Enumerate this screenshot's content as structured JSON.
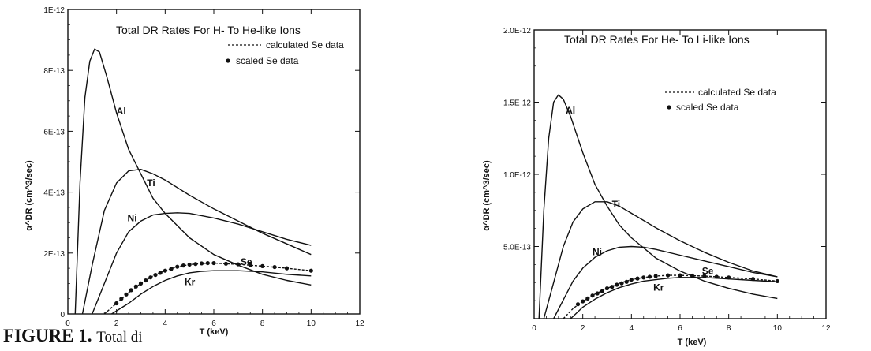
{
  "caption": {
    "label": "FIGURE 1.",
    "text": "Total di"
  },
  "chart_data": [
    {
      "type": "line",
      "title": "Total DR Rates For H- To He-like Ions",
      "xlabel": "T (keV)",
      "ylabel": "α^DR (cm^3/sec)",
      "xlim": [
        0,
        12
      ],
      "ylim": [
        0,
        1e-12
      ],
      "x_ticks": [
        0,
        2,
        4,
        6,
        8,
        10,
        12
      ],
      "x_tick_labels": [
        "0",
        "2",
        "4",
        "6",
        "8",
        "10",
        "12"
      ],
      "y_ticks": [
        0,
        2e-13,
        4e-13,
        6e-13,
        8e-13,
        1e-12
      ],
      "y_tick_labels": [
        "0",
        "2E-13",
        "4E-13",
        "6E-13",
        "8E-13",
        "1E-12"
      ],
      "legend": [
        {
          "label": "calculated Se data",
          "marker": "dashed-line"
        },
        {
          "label": "scaled Se data",
          "marker": "dot"
        }
      ],
      "series": [
        {
          "name": "Al",
          "x": [
            0.3,
            0.5,
            0.7,
            0.9,
            1.1,
            1.3,
            1.6,
            2.0,
            2.5,
            3.0,
            3.5,
            4.0,
            5.0,
            6.0,
            7.0,
            8.0,
            9.0,
            10.0
          ],
          "y": [
            0,
            4.3e-13,
            7.1e-13,
            8.3e-13,
            8.7e-13,
            8.6e-13,
            7.8e-13,
            6.6e-13,
            5.4e-13,
            4.6e-13,
            3.8e-13,
            3.3e-13,
            2.5e-13,
            1.95e-13,
            1.6e-13,
            1.3e-13,
            1.1e-13,
            9.5e-14
          ]
        },
        {
          "name": "Ti",
          "x": [
            0.6,
            1.0,
            1.5,
            2.0,
            2.5,
            3.0,
            3.5,
            4.0,
            5.0,
            6.0,
            7.0,
            8.0,
            9.0,
            10.0
          ],
          "y": [
            0,
            1.6e-13,
            3.4e-13,
            4.3e-13,
            4.7e-13,
            4.75e-13,
            4.6e-13,
            4.4e-13,
            3.9e-13,
            3.45e-13,
            3.05e-13,
            2.65e-13,
            2.3e-13,
            1.95e-13
          ]
        },
        {
          "name": "Ni",
          "x": [
            1.0,
            1.5,
            2.0,
            2.5,
            3.0,
            3.5,
            4.0,
            4.5,
            5.0,
            6.0,
            7.0,
            8.0,
            9.0,
            10.0
          ],
          "y": [
            0,
            1e-13,
            2e-13,
            2.7e-13,
            3.05e-13,
            3.25e-13,
            3.3e-13,
            3.32e-13,
            3.3e-13,
            3.15e-13,
            2.95e-13,
            2.7e-13,
            2.45e-13,
            2.25e-13
          ]
        },
        {
          "name": "Se",
          "x": [
            1.5,
            2.0,
            2.5,
            3.0,
            3.5,
            4.0,
            4.5,
            5.0,
            5.5,
            6.0,
            7.0,
            8.0,
            9.0,
            10.0
          ],
          "y": [
            0,
            3.5e-14,
            7e-14,
            1e-13,
            1.25e-13,
            1.42e-13,
            1.55e-13,
            1.62e-13,
            1.66e-13,
            1.67e-13,
            1.63e-13,
            1.57e-13,
            1.5e-13,
            1.42e-13
          ]
        },
        {
          "name": "Kr",
          "x": [
            1.8,
            2.5,
            3.0,
            3.5,
            4.0,
            4.5,
            5.0,
            5.5,
            6.0,
            7.0,
            8.0,
            9.0,
            10.0
          ],
          "y": [
            0,
            3.5e-14,
            6.5e-14,
            9e-14,
            1.1e-13,
            1.25e-13,
            1.35e-13,
            1.4e-13,
            1.42e-13,
            1.42e-13,
            1.38e-13,
            1.3e-13,
            1.25e-13
          ]
        },
        {
          "name": "scaled Se data",
          "style": "dots",
          "x": [
            2.0,
            2.2,
            2.4,
            2.6,
            2.8,
            3.0,
            3.2,
            3.4,
            3.6,
            3.8,
            4.0,
            4.25,
            4.5,
            4.75,
            5.0,
            5.25,
            5.5,
            5.75,
            6.0,
            6.5,
            7.0,
            7.5,
            8.0,
            8.5,
            9.0,
            10.0
          ],
          "y": [
            3.5e-14,
            5e-14,
            6.4e-14,
            7.8e-14,
            9e-14,
            1e-13,
            1.1e-13,
            1.2e-13,
            1.28e-13,
            1.35e-13,
            1.42e-13,
            1.48e-13,
            1.55e-13,
            1.59e-13,
            1.62e-13,
            1.64e-13,
            1.66e-13,
            1.67e-13,
            1.67e-13,
            1.65e-13,
            1.63e-13,
            1.6e-13,
            1.57e-13,
            1.54e-13,
            1.5e-13,
            1.42e-13
          ]
        }
      ]
    },
    {
      "type": "line",
      "title": "Total DR Rates For He- To Li-like Ions",
      "xlabel": "T (keV)",
      "ylabel": "α^DR (cm^3/sec)",
      "xlim": [
        0,
        12
      ],
      "ylim": [
        0,
        2e-12
      ],
      "x_ticks": [
        0,
        2,
        4,
        6,
        8,
        10,
        12
      ],
      "x_tick_labels": [
        "0",
        "2",
        "4",
        "6",
        "8",
        "10",
        "12"
      ],
      "y_ticks": [
        0,
        5e-13,
        1e-12,
        1.5e-12,
        2e-12
      ],
      "y_tick_labels": [
        "",
        "5.0E-13",
        "1.0E-12",
        "1.5E-12",
        "2.0E-12"
      ],
      "legend": [
        {
          "label": "calculated Se data",
          "marker": "dashed-line"
        },
        {
          "label": "scaled Se data",
          "marker": "dot"
        }
      ],
      "series": [
        {
          "name": "Al",
          "x": [
            0.2,
            0.4,
            0.6,
            0.8,
            1.0,
            1.2,
            1.5,
            2.0,
            2.5,
            3.0,
            3.5,
            4.0,
            5.0,
            6.0,
            7.0,
            8.0,
            9.0,
            10.0
          ],
          "y": [
            0,
            7.5e-13,
            1.25e-12,
            1.5e-12,
            1.55e-12,
            1.52e-12,
            1.4e-12,
            1.15e-12,
            9.3e-13,
            7.8e-13,
            6.5e-13,
            5.6e-13,
            4.2e-13,
            3.3e-13,
            2.6e-13,
            2.1e-13,
            1.7e-13,
            1.4e-13
          ]
        },
        {
          "name": "Ti",
          "x": [
            0.4,
            0.8,
            1.2,
            1.6,
            2.0,
            2.5,
            3.0,
            3.5,
            4.0,
            5.0,
            6.0,
            7.0,
            8.0,
            9.0,
            10.0
          ],
          "y": [
            0,
            2.5e-13,
            5e-13,
            6.7e-13,
            7.6e-13,
            8.1e-13,
            8.1e-13,
            7.8e-13,
            7.3e-13,
            6.3e-13,
            5.4e-13,
            4.6e-13,
            3.9e-13,
            3.3e-13,
            2.9e-13
          ]
        },
        {
          "name": "Ni",
          "x": [
            0.8,
            1.2,
            1.6,
            2.0,
            2.5,
            3.0,
            3.5,
            4.0,
            4.5,
            5.0,
            6.0,
            7.0,
            8.0,
            9.0,
            10.0
          ],
          "y": [
            0,
            1.3e-13,
            2.6e-13,
            3.5e-13,
            4.25e-13,
            4.7e-13,
            4.95e-13,
            5e-13,
            4.95e-13,
            4.8e-13,
            4.4e-13,
            4e-13,
            3.6e-13,
            3.2e-13,
            2.9e-13
          ]
        },
        {
          "name": "Se",
          "x": [
            1.2,
            1.6,
            2.0,
            2.5,
            3.0,
            3.5,
            4.0,
            4.5,
            5.0,
            5.5,
            6.0,
            7.0,
            8.0,
            9.0,
            10.0
          ],
          "y": [
            0,
            7e-14,
            1.2e-13,
            1.7e-13,
            2.1e-13,
            2.45e-13,
            2.7e-13,
            2.85e-13,
            2.95e-13,
            3e-13,
            3e-13,
            2.95e-13,
            2.85e-13,
            2.75e-13,
            2.6e-13
          ]
        },
        {
          "name": "Kr",
          "x": [
            1.5,
            2.0,
            2.5,
            3.0,
            3.5,
            4.0,
            4.5,
            5.0,
            5.5,
            6.0,
            7.0,
            8.0,
            9.0,
            10.0
          ],
          "y": [
            0,
            8e-14,
            1.35e-13,
            1.8e-13,
            2.15e-13,
            2.4e-13,
            2.6e-13,
            2.7e-13,
            2.8e-13,
            2.85e-13,
            2.85e-13,
            2.75e-13,
            2.65e-13,
            2.55e-13
          ]
        },
        {
          "name": "scaled Se data",
          "style": "dots",
          "x": [
            1.8,
            2.0,
            2.2,
            2.4,
            2.6,
            2.8,
            3.0,
            3.2,
            3.4,
            3.6,
            3.8,
            4.0,
            4.25,
            4.5,
            4.75,
            5.0,
            5.5,
            6.0,
            6.5,
            7.0,
            7.5,
            8.0,
            9.0,
            10.0
          ],
          "y": [
            1e-13,
            1.2e-13,
            1.4e-13,
            1.6e-13,
            1.75e-13,
            1.9e-13,
            2.1e-13,
            2.2e-13,
            2.35e-13,
            2.45e-13,
            2.55e-13,
            2.7e-13,
            2.78e-13,
            2.85e-13,
            2.9e-13,
            2.95e-13,
            3e-13,
            3e-13,
            2.98e-13,
            2.95e-13,
            2.9e-13,
            2.85e-13,
            2.75e-13,
            2.6e-13
          ]
        }
      ]
    }
  ]
}
